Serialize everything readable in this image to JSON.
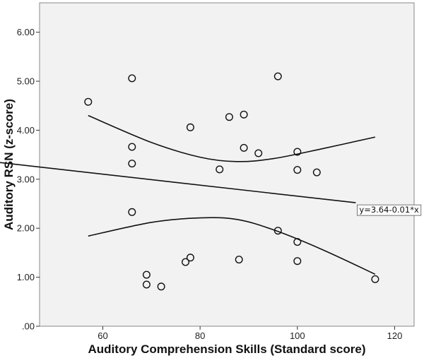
{
  "chart_data": {
    "type": "scatter",
    "xlabel": "Auditory Comprehension Skills (Standard score)",
    "ylabel": "Auditory RSN (z-score)",
    "xlim": [
      47,
      124
    ],
    "ylim": [
      0,
      6.6
    ],
    "x_ticks": [
      60,
      80,
      100,
      120
    ],
    "x_tick_labels": [
      "60",
      "80",
      "100",
      "120"
    ],
    "y_ticks": [
      0,
      1,
      2,
      3,
      4,
      5,
      6
    ],
    "y_tick_labels": [
      ".00",
      "1.00",
      "2.00",
      "3.00",
      "4.00",
      "5.00",
      "6.00"
    ],
    "grid": false,
    "plot_background": "#f2f2f2",
    "points": [
      {
        "x": 57,
        "y": 4.58
      },
      {
        "x": 66,
        "y": 5.06
      },
      {
        "x": 66,
        "y": 3.66
      },
      {
        "x": 66,
        "y": 3.32
      },
      {
        "x": 66,
        "y": 2.33
      },
      {
        "x": 69,
        "y": 1.05
      },
      {
        "x": 69,
        "y": 0.85
      },
      {
        "x": 72,
        "y": 0.81
      },
      {
        "x": 77,
        "y": 1.31
      },
      {
        "x": 78,
        "y": 4.06
      },
      {
        "x": 78,
        "y": 1.4
      },
      {
        "x": 84,
        "y": 3.2
      },
      {
        "x": 86,
        "y": 4.27
      },
      {
        "x": 88,
        "y": 1.36
      },
      {
        "x": 89,
        "y": 4.32
      },
      {
        "x": 89,
        "y": 3.64
      },
      {
        "x": 92,
        "y": 3.53
      },
      {
        "x": 96,
        "y": 5.1
      },
      {
        "x": 96,
        "y": 1.95
      },
      {
        "x": 100,
        "y": 3.56
      },
      {
        "x": 100,
        "y": 3.19
      },
      {
        "x": 100,
        "y": 1.72
      },
      {
        "x": 100,
        "y": 1.33
      },
      {
        "x": 104,
        "y": 3.14
      },
      {
        "x": 116,
        "y": 0.96
      }
    ],
    "fit_line": {
      "intercept": 3.64,
      "slope": -0.01,
      "x_range": [
        47,
        124
      ],
      "label": "y=3.64-0.01*x"
    },
    "confidence_band": {
      "x_range": [
        57,
        116
      ],
      "x_center": 87.5,
      "upper": {
        "x": [
          57,
          70,
          80,
          87.5,
          95,
          105,
          116
        ],
        "y": [
          4.3,
          3.75,
          3.45,
          3.36,
          3.42,
          3.62,
          3.86
        ]
      },
      "lower": {
        "x": [
          57,
          70,
          80,
          87.5,
          95,
          105,
          116
        ],
        "y": [
          1.84,
          2.12,
          2.21,
          2.18,
          1.97,
          1.57,
          1.06
        ]
      }
    }
  }
}
